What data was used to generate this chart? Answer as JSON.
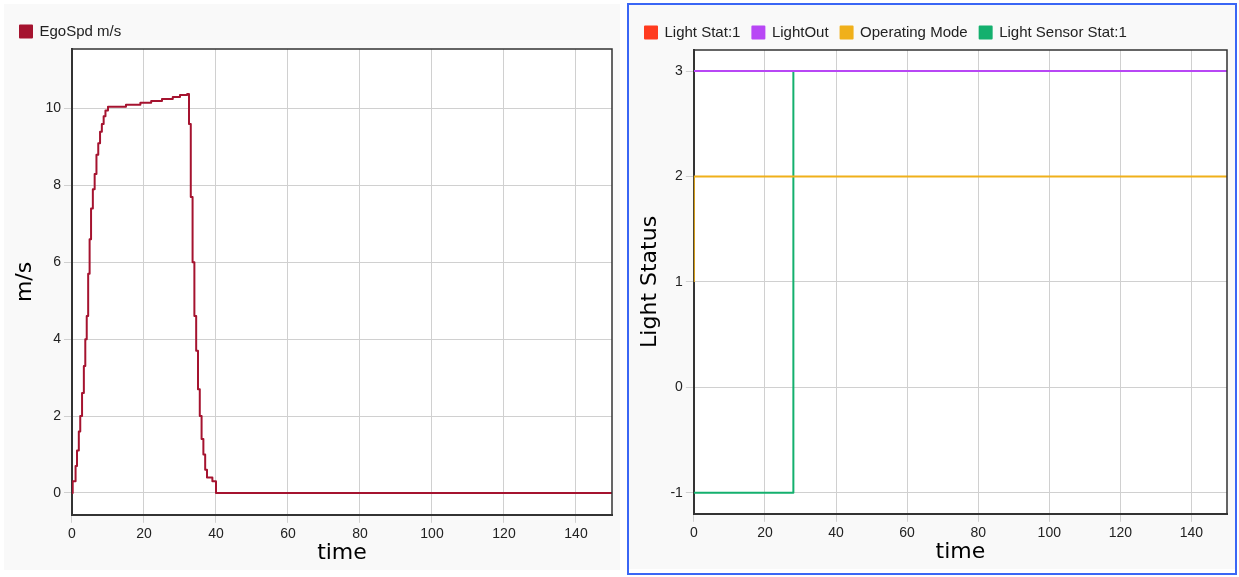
{
  "chart_data": [
    {
      "type": "step",
      "xlabel": "time",
      "ylabel": "m/s",
      "xlim": [
        0,
        150
      ],
      "xticks": [
        0,
        20,
        40,
        60,
        80,
        100,
        120,
        140
      ],
      "ylim": [
        -0.57,
        11.55
      ],
      "yticks": [
        0,
        2,
        4,
        6,
        8,
        10
      ],
      "grid": true,
      "legend": "top left",
      "series": [
        {
          "name": "EgoSpd m/s",
          "color": "#a5132f",
          "x": [
            0,
            0.2,
            1,
            1.4,
            1.9,
            2.3,
            2.8,
            3.3,
            3.7,
            4.1,
            4.5,
            4.9,
            5.3,
            5.8,
            6.3,
            6.8,
            7.3,
            7.8,
            8.3,
            8.8,
            9.3,
            10,
            15,
            19,
            22,
            25,
            28,
            30,
            32,
            32.5,
            33,
            33.5,
            34,
            34.5,
            35,
            35.5,
            36,
            36.5,
            37,
            37.5,
            39,
            40,
            150
          ],
          "values": [
            0,
            0.3,
            0.7,
            1.1,
            1.6,
            2,
            2.6,
            3.3,
            4,
            4.6,
            5.7,
            6.6,
            7.4,
            7.9,
            8.3,
            8.8,
            9.1,
            9.4,
            9.6,
            9.8,
            9.95,
            10.05,
            10.1,
            10.15,
            10.2,
            10.25,
            10.3,
            10.35,
            10.38,
            9.6,
            7.7,
            6,
            4.6,
            3.7,
            2.7,
            2,
            1.4,
            1,
            0.6,
            0.4,
            0.3,
            0,
            0
          ]
        }
      ]
    },
    {
      "type": "step",
      "xlabel": "time",
      "ylabel": "Light Status",
      "xlim": [
        0,
        150
      ],
      "xticks": [
        0,
        20,
        40,
        60,
        80,
        100,
        120,
        140
      ],
      "ylim": [
        -1.2,
        3.2
      ],
      "yticks": [
        -1,
        0,
        1,
        2,
        3
      ],
      "grid": true,
      "legend": "top left",
      "series": [
        {
          "name": "Light Stat:1",
          "color": "#ff3b1f"
        },
        {
          "name": "LightOut",
          "color": "#b847f5",
          "x": [
            0,
            150
          ],
          "values": [
            3,
            3
          ]
        },
        {
          "name": "Operating Mode",
          "color": "#f0b01a",
          "x": [
            0,
            0,
            150
          ],
          "values": [
            1,
            2,
            2
          ]
        },
        {
          "name": "Light Sensor Stat:1",
          "color": "#14b06e",
          "x": [
            0,
            28,
            150
          ],
          "values": [
            -1,
            3,
            3
          ]
        }
      ]
    }
  ]
}
